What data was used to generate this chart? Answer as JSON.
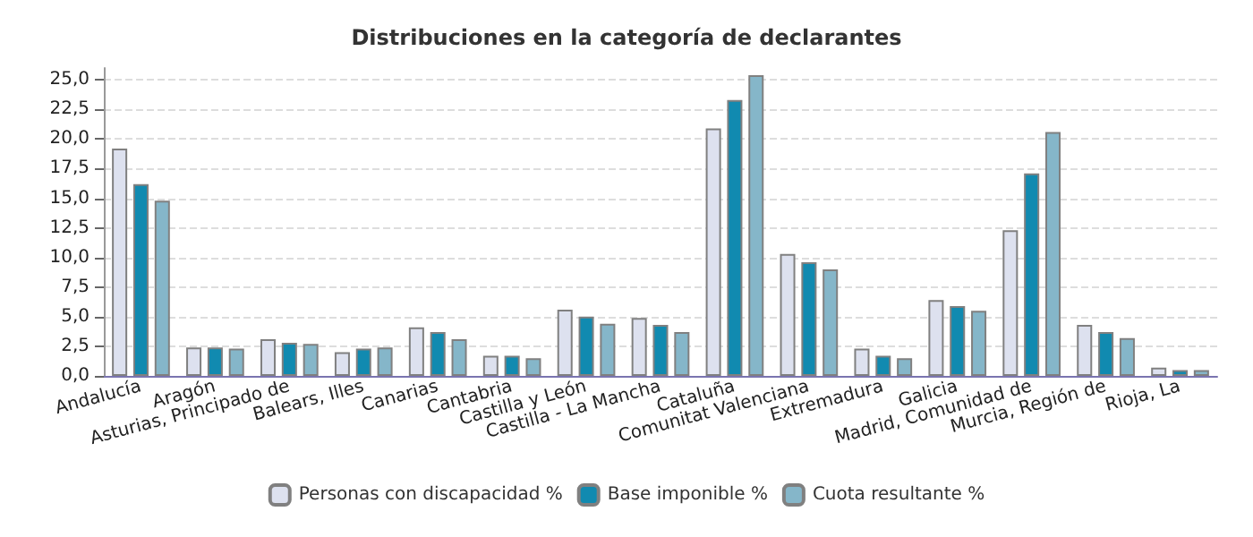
{
  "chart_data": {
    "type": "bar",
    "title": "Distribuciones en la categoría de declarantes",
    "categories": [
      "Andalucía",
      "Aragón",
      "Asturias, Principado de",
      "Balears, Illes",
      "Canarias",
      "Cantabria",
      "Castilla y León",
      "Castilla - La Mancha",
      "Cataluña",
      "Comunitat Valenciana",
      "Extremadura",
      "Galicia",
      "Madrid, Comunidad de",
      "Murcia, Región de",
      "Rioja, La"
    ],
    "series": [
      {
        "name": "Personas con discapacidad %",
        "color": "#dde1ef",
        "values": [
          19.2,
          2.4,
          3.1,
          2.0,
          4.1,
          1.7,
          5.6,
          4.9,
          20.9,
          10.3,
          2.3,
          6.4,
          12.3,
          4.3,
          0.7
        ]
      },
      {
        "name": "Base imponible %",
        "color": "#118ab0",
        "values": [
          16.2,
          2.4,
          2.8,
          2.3,
          3.7,
          1.7,
          5.0,
          4.3,
          23.3,
          9.6,
          1.7,
          5.9,
          17.1,
          3.7,
          0.5
        ]
      },
      {
        "name": "Cuota resultante %",
        "color": "#85b6c9",
        "values": [
          14.8,
          2.3,
          2.7,
          2.4,
          3.1,
          1.5,
          4.4,
          3.7,
          25.4,
          9.0,
          1.5,
          5.5,
          20.6,
          3.2,
          0.5
        ]
      }
    ],
    "ylim": [
      0,
      26
    ],
    "yticks": [
      {
        "value": 0,
        "label": "0,0"
      },
      {
        "value": 2.5,
        "label": "2,5"
      },
      {
        "value": 5,
        "label": "5,0"
      },
      {
        "value": 7.5,
        "label": "7,5"
      },
      {
        "value": 10,
        "label": "10,0"
      },
      {
        "value": 12.5,
        "label": "12,5"
      },
      {
        "value": 15,
        "label": "15,0"
      },
      {
        "value": 17.5,
        "label": "17,5"
      },
      {
        "value": 20,
        "label": "20,0"
      },
      {
        "value": 22.5,
        "label": "22,5"
      },
      {
        "value": 25,
        "label": "25,0"
      }
    ],
    "grid": "y",
    "legend": "bottom"
  }
}
